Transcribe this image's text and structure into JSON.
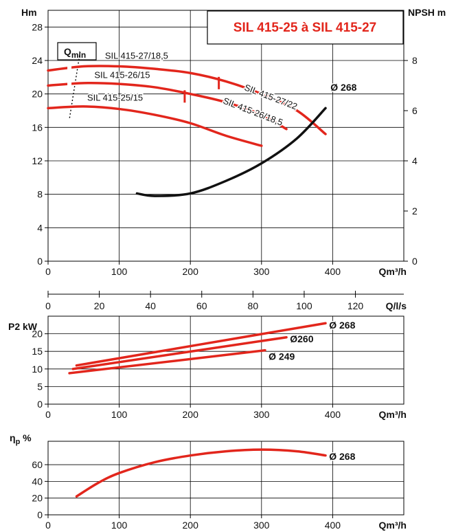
{
  "chart_data": [
    {
      "id": "head",
      "type": "line",
      "title": "SIL 415-25 à SIL 415-27",
      "ylabel": "Hm",
      "y2label": "NPSH m",
      "xlabel": "Qm³/h",
      "xlim": [
        0,
        500
      ],
      "ylim": [
        0,
        30
      ],
      "y2lim": [
        0,
        10
      ],
      "xticks": [
        0,
        100,
        200,
        300,
        400
      ],
      "yticks": [
        0,
        4,
        8,
        12,
        16,
        20,
        24,
        28
      ],
      "y2ticks": [
        0,
        2,
        4,
        6,
        8
      ],
      "grid": true,
      "qmin_label": "Q",
      "qmin_sub": "min",
      "qmin_line": [
        [
          45,
          25
        ],
        [
          30,
          17
        ]
      ],
      "series": [
        {
          "name": "SIL 415-27/18,5",
          "color": "#e2261c",
          "dashed_until": 30,
          "points": [
            [
              0,
              22.8
            ],
            [
              50,
              23.3
            ],
            [
              100,
              23.3
            ],
            [
              150,
              23.0
            ],
            [
              200,
              22.5
            ],
            [
              250,
              21.5
            ],
            [
              300,
              20.0
            ],
            [
              350,
              18.0
            ],
            [
              390,
              15.2
            ]
          ],
          "marker": [
            240,
            21.3
          ],
          "label_pos": [
            80,
            24.2
          ],
          "label_rot": 0
        },
        {
          "name": "SIL 415-27/22",
          "color": "#e2261c",
          "points": [],
          "label_pos": [
            275,
            20.5
          ],
          "label_rot": 21
        },
        {
          "name": "SIL 415-26/15",
          "color": "#e2261c",
          "dashed_until": 30,
          "points": [
            [
              0,
              21.0
            ],
            [
              50,
              21.3
            ],
            [
              100,
              21.2
            ],
            [
              150,
              20.8
            ],
            [
              200,
              20.0
            ],
            [
              250,
              19.0
            ],
            [
              300,
              17.5
            ],
            [
              335,
              15.8
            ]
          ],
          "marker": [
            192,
            19.7
          ],
          "label_pos": [
            65,
            21.9
          ],
          "label_rot": 0
        },
        {
          "name": "SIL 415-26/18,5",
          "color": "#e2261c",
          "points": [],
          "label_pos": [
            245,
            18.9
          ],
          "label_rot": 21
        },
        {
          "name": "SIL 415-25/15",
          "color": "#e2261c",
          "points": [
            [
              0,
              18.3
            ],
            [
              50,
              18.5
            ],
            [
              100,
              18.2
            ],
            [
              150,
              17.5
            ],
            [
              200,
              16.5
            ],
            [
              250,
              15.0
            ],
            [
              300,
              13.8
            ]
          ],
          "label_pos": [
            55,
            19.2
          ],
          "label_rot": 0
        }
      ],
      "npsh": {
        "name": "Ø 268",
        "color": "#111111",
        "points": [
          [
            125,
            2.7
          ],
          [
            150,
            2.6
          ],
          [
            200,
            2.7
          ],
          [
            250,
            3.2
          ],
          [
            300,
            3.9
          ],
          [
            350,
            4.9
          ],
          [
            390,
            6.1
          ]
        ]
      }
    },
    {
      "id": "flow_ls",
      "type": "axis",
      "xlabel": "Q/l/s",
      "xlim": [
        0,
        138.9
      ],
      "xticks": [
        0,
        20,
        40,
        60,
        80,
        100,
        120
      ]
    },
    {
      "id": "power",
      "type": "line",
      "ylabel": "P2 kW",
      "xlabel": "Qm³/h",
      "xlim": [
        0,
        500
      ],
      "ylim": [
        0,
        25
      ],
      "xticks": [
        0,
        100,
        200,
        300,
        400
      ],
      "yticks": [
        0,
        5,
        10,
        15,
        20
      ],
      "grid": true,
      "series": [
        {
          "name": "Ø 268",
          "color": "#e2261c",
          "points": [
            [
              40,
              11
            ],
            [
              390,
              23
            ]
          ],
          "label_pos": [
            395,
            22.5
          ]
        },
        {
          "name": "Ø260",
          "color": "#e2261c",
          "points": [
            [
              35,
              10
            ],
            [
              335,
              19
            ]
          ],
          "label_pos": [
            340,
            18.6
          ]
        },
        {
          "name": "Ø 249",
          "color": "#e2261c",
          "points": [
            [
              30,
              8.8
            ],
            [
              305,
              15.3
            ]
          ],
          "label_pos": [
            310,
            13.6
          ]
        }
      ]
    },
    {
      "id": "efficiency",
      "type": "line",
      "ylabel": "η",
      "ylabel_sub": "p",
      "ylabel_unit": " %",
      "xlabel": "Qm³/h",
      "xlim": [
        0,
        500
      ],
      "ylim": [
        0,
        88
      ],
      "xticks": [
        0,
        100,
        200,
        300,
        400
      ],
      "yticks": [
        0,
        20,
        40,
        60
      ],
      "grid": true,
      "series": [
        {
          "name": "Ø 268",
          "color": "#e2261c",
          "points": [
            [
              40,
              22
            ],
            [
              70,
              38
            ],
            [
              100,
              50
            ],
            [
              150,
              63
            ],
            [
              200,
              71
            ],
            [
              250,
              76
            ],
            [
              300,
              78
            ],
            [
              350,
              76
            ],
            [
              390,
              71
            ]
          ],
          "label_pos": [
            395,
            70
          ]
        }
      ]
    }
  ]
}
